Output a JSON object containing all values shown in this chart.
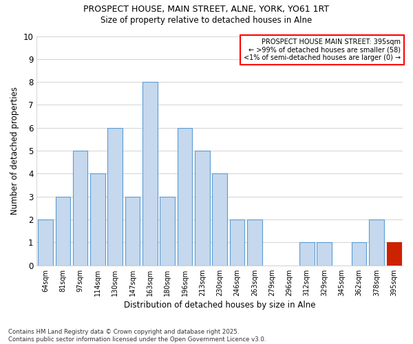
{
  "title1": "PROSPECT HOUSE, MAIN STREET, ALNE, YORK, YO61 1RT",
  "title2": "Size of property relative to detached houses in Alne",
  "xlabel": "Distribution of detached houses by size in Alne",
  "ylabel": "Number of detached properties",
  "categories": [
    "64sqm",
    "81sqm",
    "97sqm",
    "114sqm",
    "130sqm",
    "147sqm",
    "163sqm",
    "180sqm",
    "196sqm",
    "213sqm",
    "230sqm",
    "246sqm",
    "263sqm",
    "279sqm",
    "296sqm",
    "312sqm",
    "329sqm",
    "345sqm",
    "362sqm",
    "378sqm",
    "395sqm"
  ],
  "values": [
    2,
    3,
    5,
    4,
    6,
    3,
    8,
    3,
    6,
    5,
    4,
    2,
    2,
    0,
    0,
    1,
    1,
    0,
    1,
    2,
    1
  ],
  "highlight_index": 20,
  "bar_color": "#c5d8ed",
  "bar_edge_color": "#5b9bd5",
  "highlight_color": "#cc2200",
  "ylim": [
    0,
    10
  ],
  "yticks": [
    0,
    1,
    2,
    3,
    4,
    5,
    6,
    7,
    8,
    9,
    10
  ],
  "annotation_title": "PROSPECT HOUSE MAIN STREET: 395sqm",
  "annotation_line2": "← >99% of detached houses are smaller (58)",
  "annotation_line3": "<1% of semi-detached houses are larger (0) →",
  "footer1": "Contains HM Land Registry data © Crown copyright and database right 2025.",
  "footer2": "Contains public sector information licensed under the Open Government Licence v3.0."
}
